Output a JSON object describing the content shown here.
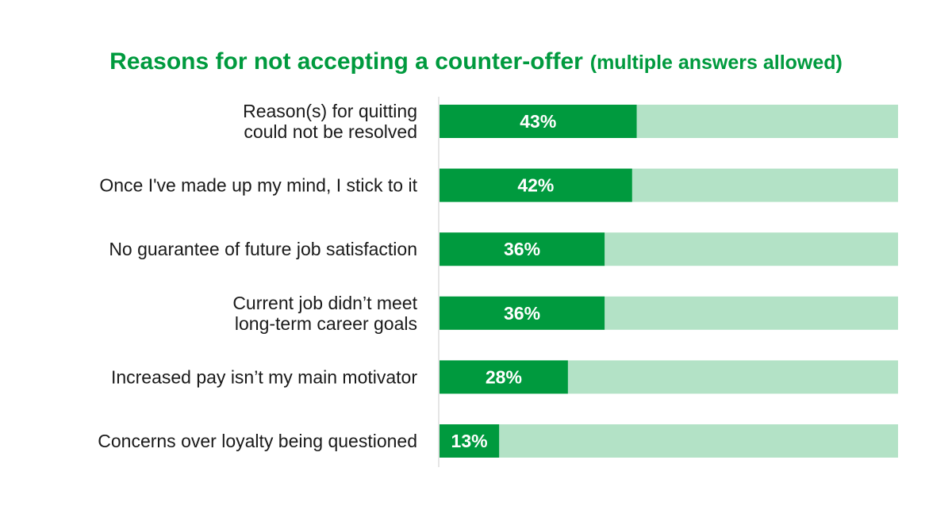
{
  "chart_data": {
    "type": "bar",
    "orientation": "horizontal",
    "title": "Reasons for not accepting a counter-offer",
    "subtitle": "(multiple answers allowed)",
    "categories": [
      [
        "Reason(s) for quitting",
        "could not be resolved"
      ],
      [
        "Once I've made up my mind, I stick to it"
      ],
      [
        "No guarantee of future job satisfaction"
      ],
      [
        "Current job didn’t meet",
        "long-term career goals"
      ],
      [
        "Increased pay isn’t my main motivator"
      ],
      [
        "Concerns over loyalty being questioned"
      ]
    ],
    "values": [
      43,
      42,
      36,
      36,
      28,
      13
    ],
    "value_labels": [
      "43%",
      "42%",
      "36%",
      "36%",
      "28%",
      "13%"
    ],
    "xlim": [
      0,
      100
    ],
    "grid": false,
    "legend": "none",
    "colors": {
      "title": "#009a3e",
      "bar": "#009a3e",
      "track": "#b3e2c6",
      "axis": "#cccccc",
      "label": "#1a1a1a",
      "value_text": "#ffffff"
    }
  }
}
